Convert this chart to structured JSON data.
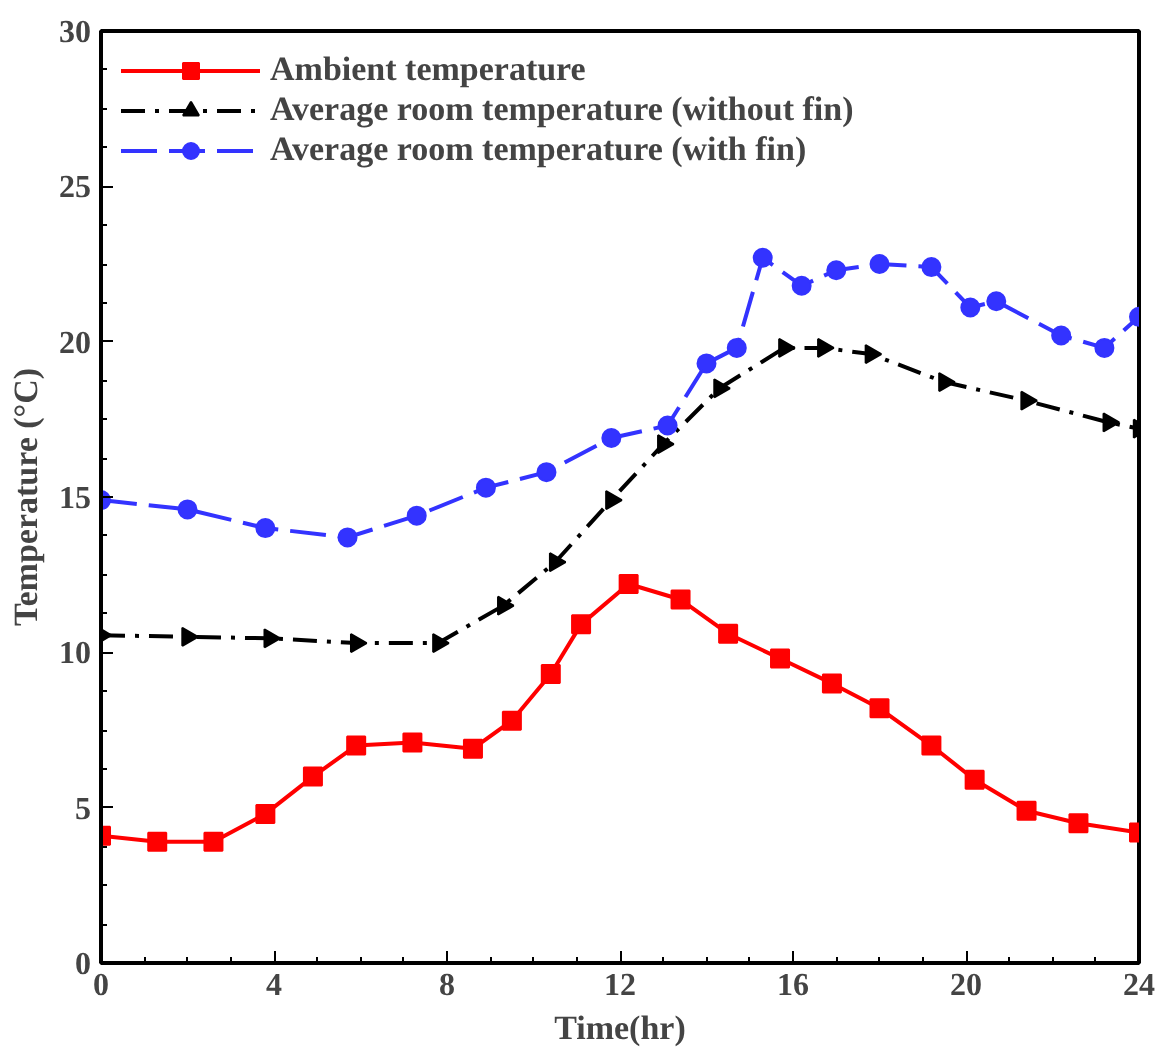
{
  "chart_data": {
    "type": "line",
    "xlabel": "Time(hr)",
    "ylabel": "Temperature (°C)",
    "xlim": [
      0,
      24
    ],
    "ylim": [
      0,
      30
    ],
    "xticks": [
      0,
      4,
      8,
      12,
      16,
      20,
      24
    ],
    "yticks": [
      0,
      5,
      10,
      15,
      20,
      25,
      30
    ],
    "grid": false,
    "legend": "top left",
    "series": [
      {
        "name": "Ambient temperature",
        "color": "#ff0000",
        "marker": "square",
        "line_style": "solid",
        "x": [
          0,
          1.3,
          2.6,
          3.8,
          4.9,
          5.9,
          7.2,
          8.6,
          9.5,
          10.4,
          11.1,
          12.2,
          13.4,
          14.5,
          15.7,
          16.9,
          18.0,
          19.2,
          20.2,
          21.4,
          22.6,
          24
        ],
        "values": [
          4.1,
          3.9,
          3.9,
          4.8,
          6.0,
          7.0,
          7.1,
          6.9,
          7.8,
          9.3,
          10.9,
          12.2,
          11.7,
          10.6,
          9.8,
          9.0,
          8.2,
          7.0,
          5.9,
          4.9,
          4.5,
          4.2
        ]
      },
      {
        "name": "Average room temperature (without fin)",
        "color": "#000000",
        "marker": "triangle",
        "line_style": "dashdot",
        "x": [
          0,
          2.0,
          3.9,
          5.9,
          7.8,
          9.3,
          10.5,
          11.8,
          13.0,
          14.3,
          15.8,
          16.7,
          17.8,
          19.5,
          21.4,
          23.3,
          24
        ],
        "values": [
          10.55,
          10.5,
          10.45,
          10.3,
          10.3,
          11.5,
          12.9,
          14.9,
          16.7,
          18.5,
          19.8,
          19.8,
          19.6,
          18.7,
          18.1,
          17.4,
          17.2
        ]
      },
      {
        "name": "Average room temperature (with fin)",
        "color": "#3333ff",
        "marker": "circle",
        "line_style": "dashed",
        "x": [
          0,
          2.0,
          3.8,
          5.7,
          7.3,
          8.9,
          10.3,
          11.8,
          13.1,
          14.0,
          14.7,
          15.3,
          16.2,
          17.0,
          18.0,
          19.2,
          20.1,
          20.7,
          22.2,
          23.2,
          24
        ],
        "values": [
          14.9,
          14.6,
          14.0,
          13.7,
          14.4,
          15.3,
          15.8,
          16.9,
          17.3,
          19.3,
          19.8,
          22.7,
          21.8,
          22.3,
          22.5,
          22.4,
          21.1,
          21.3,
          20.2,
          19.8,
          20.8
        ]
      }
    ]
  }
}
